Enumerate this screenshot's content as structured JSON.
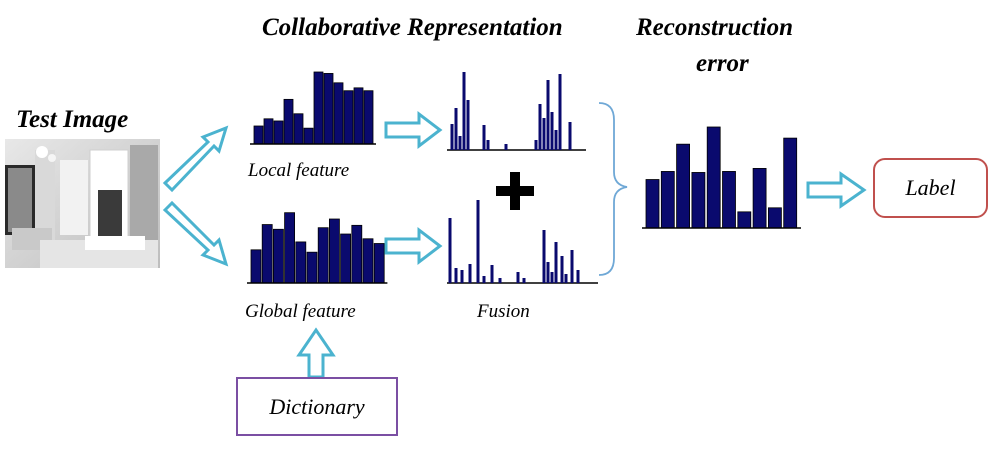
{
  "headings": {
    "test_image": "Test Image",
    "collaborative": "Collaborative Representation",
    "reconstruction_line1": "Reconstruction",
    "reconstruction_line2": "error"
  },
  "labels": {
    "local_feature": "Local feature",
    "global_feature": "Global feature",
    "fusion": "Fusion",
    "dictionary": "Dictionary",
    "label": "Label"
  },
  "colors": {
    "bar_fill": "#0a0a6e",
    "arrow_stroke": "#4bb3cf",
    "bracket_stroke": "#6fa8d6",
    "dictionary_border": "#7b4fa3",
    "label_border": "#c0504d"
  },
  "histograms": {
    "local_feature": [
      0.25,
      0.35,
      0.32,
      0.62,
      0.42,
      0.22,
      1.0,
      0.98,
      0.85,
      0.74,
      0.78,
      0.74
    ],
    "global_feature": [
      0.42,
      0.74,
      0.68,
      0.89,
      0.52,
      0.39,
      0.7,
      0.81,
      0.62,
      0.73,
      0.56,
      0.5
    ],
    "reconstruction_error": [
      0.48,
      0.56,
      0.83,
      0.55,
      1.0,
      0.56,
      0.16,
      0.59,
      0.2,
      0.89
    ]
  },
  "icons": [
    "plus-icon",
    "arrow-icon",
    "bracket-icon",
    "photo-icon"
  ]
}
